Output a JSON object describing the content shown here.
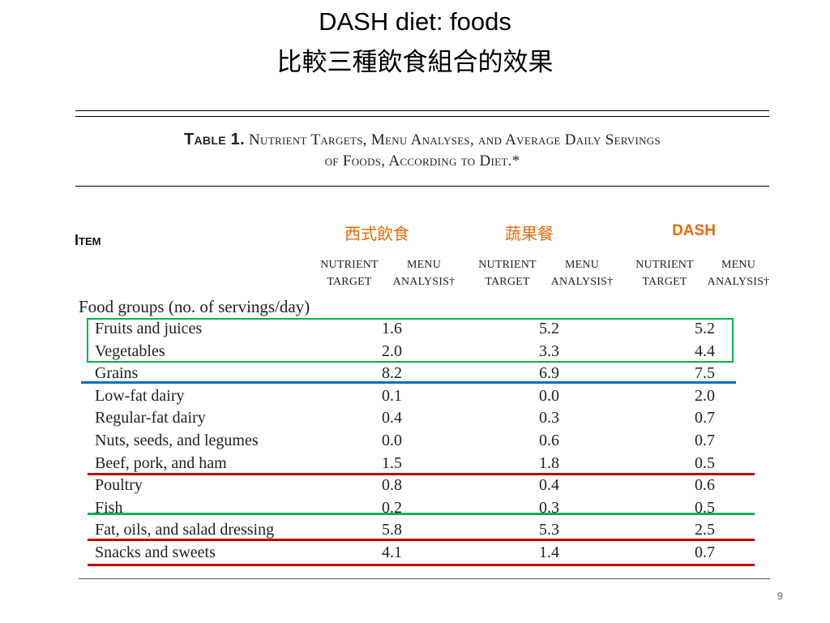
{
  "slide": {
    "title_line1": "DASH diet: foods",
    "title_line2": "比較三種飲食組合的效果",
    "page_number": "9"
  },
  "table": {
    "caption_prefix": "Table 1.",
    "caption_line1": "Nutrient Targets, Menu Analyses, and Average Daily Servings",
    "caption_line2": "of Foods, According to Diet.*",
    "item_header": "Item",
    "diets": [
      {
        "label": "西式飲食",
        "color": "#e46c0a"
      },
      {
        "label": "蔬果餐",
        "color": "#e46c0a"
      },
      {
        "label": "DASH",
        "color": "#e46c0a"
      }
    ],
    "subheaders": [
      {
        "line1": "NUTRIENT",
        "line2": "TARGET"
      },
      {
        "line1": "MENU",
        "line2": "ANALYSIS†"
      },
      {
        "line1": "NUTRIENT",
        "line2": "TARGET"
      },
      {
        "line1": "MENU",
        "line2": "ANALYSIS†"
      },
      {
        "line1": "NUTRIENT",
        "line2": "TARGET"
      },
      {
        "line1": "MENU",
        "line2": "ANALYSIS†"
      }
    ],
    "section_title": "Food groups (no. of servings/day)",
    "rows": [
      {
        "label": "Fruits and juices",
        "values": [
          "1.6",
          "5.2",
          "5.2"
        ]
      },
      {
        "label": "Vegetables",
        "values": [
          "2.0",
          "3.3",
          "4.4"
        ]
      },
      {
        "label": "Grains",
        "values": [
          "8.2",
          "6.9",
          "7.5"
        ]
      },
      {
        "label": "Low-fat dairy",
        "values": [
          "0.1",
          "0.0",
          "2.0"
        ]
      },
      {
        "label": "Regular-fat dairy",
        "values": [
          "0.4",
          "0.3",
          "0.7"
        ]
      },
      {
        "label": "Nuts, seeds, and legumes",
        "values": [
          "0.0",
          "0.6",
          "0.7"
        ]
      },
      {
        "label": "Beef, pork, and ham",
        "values": [
          "1.5",
          "1.8",
          "0.5"
        ]
      },
      {
        "label": "Poultry",
        "values": [
          "0.8",
          "0.4",
          "0.6"
        ]
      },
      {
        "label": "Fish",
        "values": [
          "0.2",
          "0.3",
          "0.5"
        ]
      },
      {
        "label": "Fat, oils, and salad dressing",
        "values": [
          "5.8",
          "5.3",
          "2.5"
        ]
      },
      {
        "label": "Snacks and sweets",
        "values": [
          "4.1",
          "1.4",
          "0.7"
        ]
      }
    ],
    "highlight_colors": {
      "green": "#00b050",
      "blue": "#0070c0",
      "red": "#c00000"
    }
  }
}
